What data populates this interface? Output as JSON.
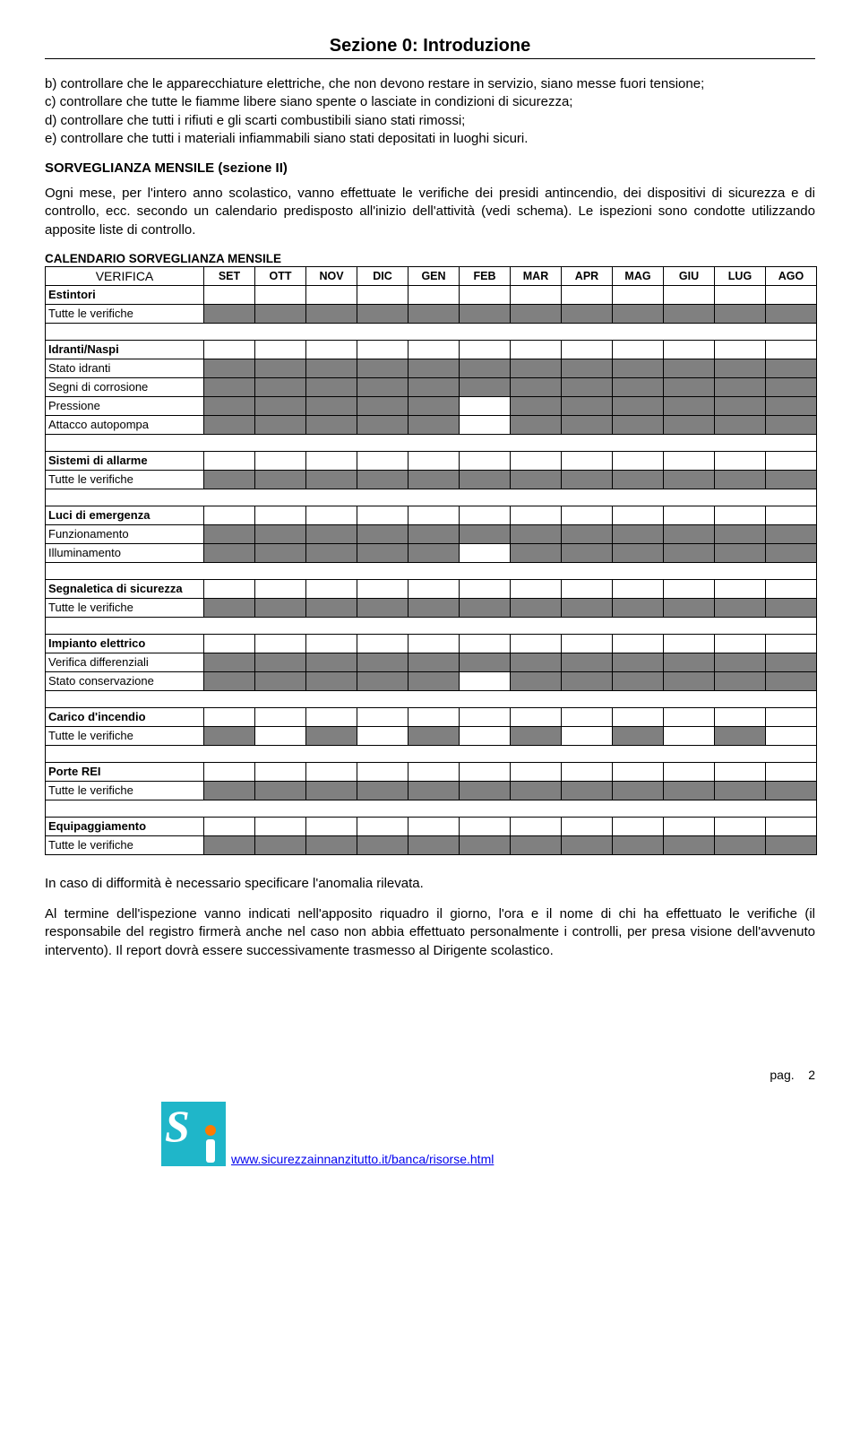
{
  "header": {
    "title": "Sezione 0: Introduzione"
  },
  "paragraphs": {
    "p1": "b) controllare che le apparecchiature elettriche, che non devono restare in servizio, siano messe fuori tensione;\nc) controllare che tutte le fiamme libere siano spente o lasciate in condizioni di sicurezza;\nd) controllare che tutti i rifiuti e gli scarti combustibili siano stati rimossi;\ne) controllare che tutti i materiali infiammabili siano stati depositati in luoghi sicuri.",
    "sub1": "SORVEGLIANZA MENSILE (sezione II)",
    "p2": "Ogni mese, per l'intero anno scolastico, vanno effettuate le verifiche dei presidi antincendio, dei dispositivi di sicurezza e di controllo, ecc. secondo un calendario predisposto all'inizio dell'attività (vedi  schema).  Le ispezioni  sono condotte utilizzando apposite liste di controllo.",
    "calTitle": "CALENDARIO SORVEGLIANZA MENSILE",
    "p3": "In caso di difformità è necessario specificare l'anomalia rilevata.",
    "p4": "Al termine dell'ispezione vanno indicati nell'apposito riquadro il giorno, l'ora e il nome di chi ha effettuato le verifiche (il responsabile del registro firmerà anche nel caso non abbia effettuato personalmente i controlli, per presa visione dell'avvenuto intervento). Il report dovrà essere successivamente  trasmesso al Dirigente scolastico."
  },
  "calendar": {
    "verificaHeader": "VERIFICA",
    "months": [
      "SET",
      "OTT",
      "NOV",
      "DIC",
      "GEN",
      "FEB",
      "MAR",
      "APR",
      "MAG",
      "GIU",
      "LUG",
      "AGO"
    ],
    "colors": {
      "filled": "#808080",
      "border": "#000000"
    },
    "rows": [
      {
        "label": "Estintori",
        "bold": true,
        "fill": []
      },
      {
        "label": "Tutte le verifiche",
        "bold": false,
        "fill": [
          0,
          1,
          2,
          3,
          4,
          5,
          6,
          7,
          8,
          9,
          10,
          11
        ]
      },
      {
        "spacer": true
      },
      {
        "label": "Idranti/Naspi",
        "bold": true,
        "fill": []
      },
      {
        "label": "Stato idranti",
        "bold": false,
        "fill": [
          0,
          1,
          2,
          3,
          4,
          5,
          6,
          7,
          8,
          9,
          10,
          11
        ]
      },
      {
        "label": "Segni di corrosione",
        "bold": false,
        "fill": [
          0,
          1,
          2,
          3,
          4,
          5,
          6,
          7,
          8,
          9,
          10,
          11
        ]
      },
      {
        "label": "Pressione",
        "bold": false,
        "fill": [
          0,
          1,
          2,
          3,
          4,
          6,
          7,
          8,
          9,
          10,
          11
        ]
      },
      {
        "label": "Attacco autopompa",
        "bold": false,
        "fill": [
          0,
          1,
          2,
          3,
          4,
          6,
          7,
          8,
          9,
          10,
          11
        ]
      },
      {
        "spacer": true
      },
      {
        "label": "Sistemi di allarme",
        "bold": true,
        "fill": []
      },
      {
        "label": "Tutte le verifiche",
        "bold": false,
        "fill": [
          0,
          1,
          2,
          3,
          4,
          5,
          6,
          7,
          8,
          9,
          10,
          11
        ]
      },
      {
        "spacer": true
      },
      {
        "label": "Luci di emergenza",
        "bold": true,
        "fill": []
      },
      {
        "label": "Funzionamento",
        "bold": false,
        "fill": [
          0,
          1,
          2,
          3,
          4,
          5,
          6,
          7,
          8,
          9,
          10,
          11
        ]
      },
      {
        "label": "Illuminamento",
        "bold": false,
        "fill": [
          0,
          1,
          2,
          3,
          4,
          6,
          7,
          8,
          9,
          10,
          11
        ]
      },
      {
        "spacer": true
      },
      {
        "label": "Segnaletica di sicurezza",
        "bold": true,
        "fill": []
      },
      {
        "label": "Tutte le verifiche",
        "bold": false,
        "fill": [
          0,
          1,
          2,
          3,
          4,
          5,
          6,
          7,
          8,
          9,
          10,
          11
        ]
      },
      {
        "spacer": true
      },
      {
        "label": "Impianto elettrico",
        "bold": true,
        "fill": []
      },
      {
        "label": "Verifica differenziali",
        "bold": false,
        "fill": [
          0,
          1,
          2,
          3,
          4,
          5,
          6,
          7,
          8,
          9,
          10,
          11
        ]
      },
      {
        "label": "Stato conservazione",
        "bold": false,
        "fill": [
          0,
          1,
          2,
          3,
          4,
          6,
          7,
          8,
          9,
          10,
          11
        ]
      },
      {
        "spacer": true
      },
      {
        "label": "Carico d'incendio",
        "bold": true,
        "fill": []
      },
      {
        "label": "Tutte le verifiche",
        "bold": false,
        "fill": [
          0,
          2,
          4,
          6,
          8,
          10
        ]
      },
      {
        "spacer": true
      },
      {
        "label": "Porte REI",
        "bold": true,
        "fill": []
      },
      {
        "label": "Tutte le verifiche",
        "bold": false,
        "fill": [
          0,
          1,
          2,
          3,
          4,
          5,
          6,
          7,
          8,
          9,
          10,
          11
        ]
      },
      {
        "spacer": true
      },
      {
        "label": "Equipaggiamento",
        "bold": true,
        "fill": []
      },
      {
        "label": "Tutte le verifiche",
        "bold": false,
        "fill": [
          0,
          1,
          2,
          3,
          4,
          5,
          6,
          7,
          8,
          9,
          10,
          11
        ]
      }
    ]
  },
  "footer": {
    "pageLabel": "pag.",
    "pageNumber": "2",
    "link": "www.sicurezzainnanzitutto.it/banca/risorse.html",
    "logo": {
      "bgColor": "#1fb6c9",
      "sColor": "#ffffff",
      "dotColor": "#ff7a00"
    }
  }
}
